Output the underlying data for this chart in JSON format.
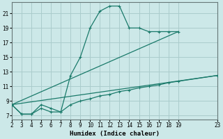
{
  "xlabel": "Humidex (Indice chaleur)",
  "bg_color": "#cce8e8",
  "grid_color": "#aacccc",
  "line_color": "#1a7a6a",
  "xlim": [
    2,
    23
  ],
  "ylim": [
    6.5,
    22.5
  ],
  "yticks": [
    7,
    9,
    11,
    13,
    15,
    17,
    19,
    21
  ],
  "xticks": [
    2,
    3,
    4,
    5,
    6,
    7,
    8,
    9,
    10,
    11,
    12,
    13,
    14,
    15,
    16,
    17,
    18,
    19,
    23
  ],
  "series1_x": [
    2,
    3,
    4,
    5,
    6,
    7,
    8,
    9,
    10,
    11,
    12,
    13,
    14,
    15,
    16,
    17,
    18,
    19
  ],
  "series1_y": [
    8.5,
    7.2,
    7.2,
    8.5,
    8.0,
    7.5,
    12.5,
    15.0,
    19.0,
    21.3,
    22.0,
    22.0,
    19.0,
    19.0,
    18.5,
    18.5,
    18.5,
    18.5
  ],
  "series2_x": [
    2,
    19
  ],
  "series2_y": [
    8.5,
    18.5
  ],
  "series3_x": [
    2,
    3,
    4,
    5,
    6,
    7,
    8,
    9,
    10,
    11,
    12,
    13,
    14,
    15,
    16,
    17,
    18,
    19,
    23
  ],
  "series3_y": [
    8.5,
    7.2,
    7.2,
    8.0,
    7.5,
    7.5,
    8.5,
    9.0,
    9.3,
    9.7,
    9.9,
    10.3,
    10.5,
    10.8,
    11.0,
    11.2,
    11.5,
    11.7,
    12.5
  ],
  "series4_x": [
    2,
    23
  ],
  "series4_y": [
    8.5,
    12.5
  ]
}
